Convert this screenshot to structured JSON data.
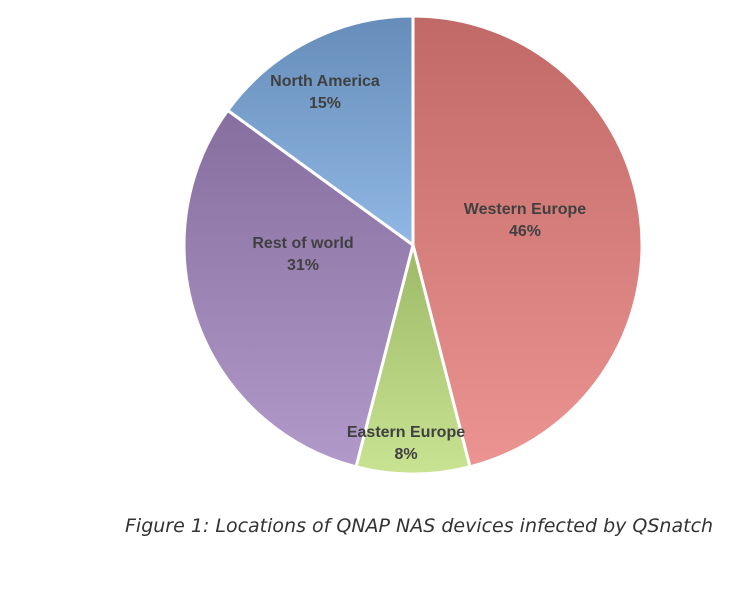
{
  "chart_data": {
    "type": "pie",
    "slices": [
      {
        "label": "Western Europe",
        "value": 46,
        "value_label": "46%",
        "color": "#d98280"
      },
      {
        "label": "Eastern Europe",
        "value": 8,
        "value_label": "8%",
        "color": "#b6d17f"
      },
      {
        "label": "Rest of world",
        "value": 31,
        "value_label": "31%",
        "color": "#9f87b8"
      },
      {
        "label": "North America",
        "value": 15,
        "value_label": "15%",
        "color": "#7fa6d2"
      }
    ],
    "start_angle_deg": 0,
    "direction": "clockwise",
    "slice_border_color": "#ffffff",
    "legend": "none"
  },
  "caption": "Figure 1: Locations of QNAP NAS devices infected by QSnatch"
}
